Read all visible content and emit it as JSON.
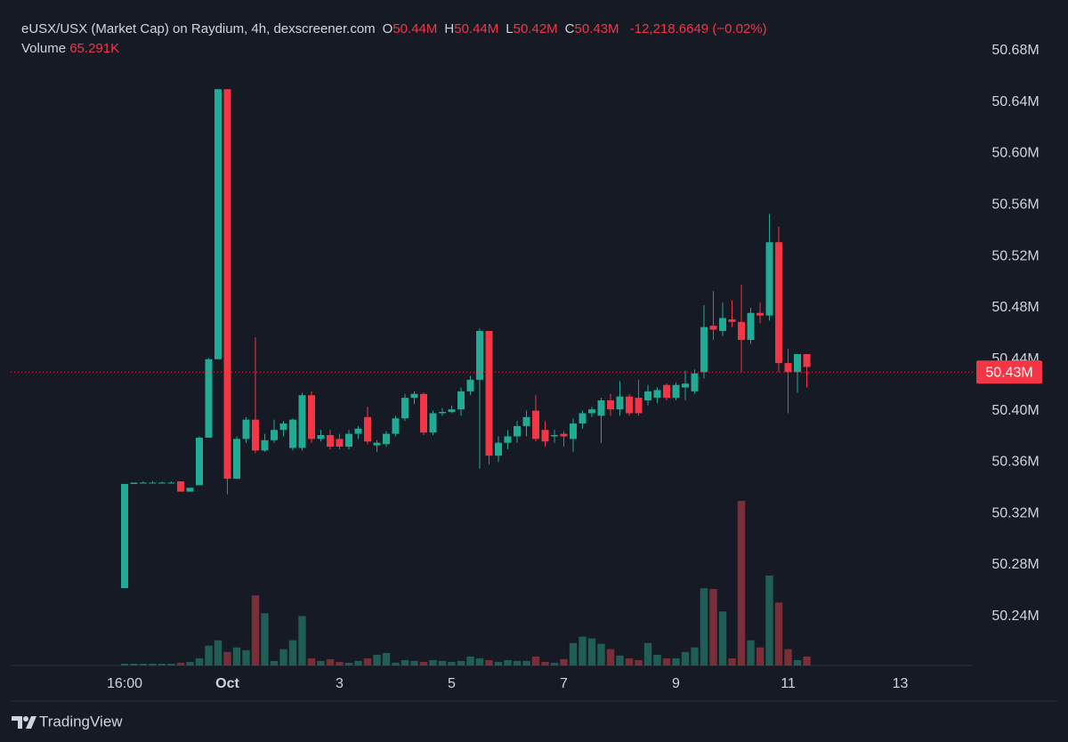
{
  "chart_data": {
    "type": "candlestick",
    "title": "eUSX/USX (Market Cap) on Raydium, 4h, dexscreener.com",
    "ohlc_legend": [
      {
        "key": "O",
        "value": "50.44M"
      },
      {
        "key": "H",
        "value": "50.44M"
      },
      {
        "key": "L",
        "value": "50.42M"
      },
      {
        "key": "C",
        "value": "50.43M"
      }
    ],
    "change": "-12,218.6649 (−0.02%)",
    "volume_legend": {
      "key": "Volume",
      "value": "65.291K"
    },
    "x": [
      0,
      1,
      2,
      3,
      4,
      5,
      6,
      7,
      8,
      9,
      10,
      11,
      12,
      13,
      14,
      15,
      16,
      17,
      18,
      19,
      20,
      21,
      22,
      23,
      24,
      25,
      26,
      27,
      28,
      29,
      30,
      31,
      32,
      33,
      34,
      35,
      36,
      37,
      38,
      39,
      40,
      41,
      42,
      43,
      44,
      45,
      46,
      47,
      48,
      49,
      50,
      51,
      52,
      53,
      54,
      55,
      56,
      57,
      58,
      59,
      60,
      61,
      62,
      63,
      64,
      65,
      66,
      67,
      68,
      69,
      70,
      71,
      72,
      73
    ],
    "open": [
      50262000,
      50343000,
      50344000,
      50344000,
      50344000,
      50344000,
      50345000,
      50337000,
      50342000,
      50379000,
      50440000,
      50650000,
      50347000,
      50378000,
      50393000,
      50369000,
      50377000,
      50385000,
      50371000,
      50371000,
      50412000,
      50378000,
      50381000,
      50378000,
      50372000,
      50382000,
      50395000,
      50373000,
      50374000,
      50382000,
      50394000,
      50410000,
      50413000,
      50383000,
      50398000,
      50399000,
      50401000,
      50415000,
      50424000,
      50462000,
      50365000,
      50375000,
      50380000,
      50388000,
      50400000,
      50385000,
      50380000,
      50382000,
      50378000,
      50390000,
      50398000,
      50396000,
      50408000,
      50401000,
      50411000,
      50410000,
      50408000,
      50410000,
      50420000,
      50410000,
      50418000,
      50415000,
      50430000,
      50466000,
      50462000,
      50471000,
      50469000,
      50455000,
      50476000,
      50474000,
      50531000,
      50437000,
      50430000,
      50444000
    ],
    "high": [
      50343000,
      50344000,
      50345000,
      50345000,
      50345000,
      50345000,
      50345000,
      50340000,
      50380000,
      50441000,
      50650000,
      50650000,
      50380000,
      50395000,
      50457000,
      50382000,
      50393000,
      50392000,
      50394000,
      50414000,
      50415000,
      50385000,
      50385000,
      50382000,
      50385000,
      50388000,
      50403000,
      50377000,
      50384000,
      50396000,
      50413000,
      50415000,
      50414000,
      50400000,
      50402000,
      50404000,
      50418000,
      50427000,
      50464000,
      50462000,
      50380000,
      50385000,
      50392000,
      50400000,
      50412000,
      50392000,
      50385000,
      50384000,
      50394000,
      50400000,
      50403000,
      50410000,
      50413000,
      50423000,
      50413000,
      50424000,
      50420000,
      50418000,
      50421000,
      50422000,
      50431000,
      50432000,
      50482000,
      50493000,
      50484000,
      50486000,
      50498000,
      50480000,
      50484000,
      50553000,
      50543000,
      50448000,
      50444000,
      50444000
    ],
    "low": [
      50262000,
      50343000,
      50344000,
      50344000,
      50344000,
      50344000,
      50337000,
      50337000,
      50342000,
      50379000,
      50440000,
      50335000,
      50347000,
      50375000,
      50367000,
      50368000,
      50375000,
      50380000,
      50369000,
      50369000,
      50375000,
      50376000,
      50370000,
      50370000,
      50370000,
      50378000,
      50374000,
      50368000,
      50372000,
      50380000,
      50392000,
      50405000,
      50381000,
      50381000,
      50396000,
      50398000,
      50396000,
      50412000,
      50355000,
      50358000,
      50360000,
      50370000,
      50375000,
      50380000,
      50376000,
      50372000,
      50375000,
      50372000,
      50368000,
      50386000,
      50395000,
      50375000,
      50396000,
      50396000,
      50396000,
      50396000,
      50404000,
      50406000,
      50408000,
      50408000,
      50408000,
      50413000,
      50425000,
      50455000,
      50458000,
      50465000,
      50430000,
      50452000,
      50468000,
      50470000,
      50430000,
      50398000,
      50414000,
      50418000
    ],
    "close": [
      50343000,
      50344000,
      50344000,
      50344000,
      50344000,
      50344000,
      50337000,
      50340000,
      50379000,
      50440000,
      50650000,
      50347000,
      50378000,
      50393000,
      50369000,
      50377000,
      50385000,
      50390000,
      50393000,
      50412000,
      50378000,
      50381000,
      50372000,
      50372000,
      50382000,
      50386000,
      50376000,
      50375000,
      50382000,
      50394000,
      50410000,
      50413000,
      50383000,
      50398000,
      50399000,
      50401000,
      50415000,
      50424000,
      50462000,
      50365000,
      50375000,
      50380000,
      50388000,
      50395000,
      50378000,
      50376000,
      50381000,
      50380000,
      50390000,
      50398000,
      50401000,
      50408000,
      50401000,
      50411000,
      50398000,
      50398000,
      50415000,
      50416000,
      50410000,
      50420000,
      50421000,
      50429000,
      50465000,
      50463000,
      50472000,
      50469000,
      50455000,
      50476000,
      50474000,
      50531000,
      50437000,
      50430000,
      50444000,
      50434000
    ],
    "volume": [
      13000,
      13000,
      13000,
      13000,
      13000,
      13000,
      20000,
      26000,
      52000,
      144000,
      183000,
      98000,
      131000,
      111000,
      509000,
      379000,
      33000,
      118000,
      183000,
      359000,
      52000,
      33000,
      46000,
      26000,
      20000,
      33000,
      52000,
      78000,
      91000,
      20000,
      39000,
      33000,
      26000,
      39000,
      33000,
      26000,
      33000,
      65000,
      52000,
      39000,
      26000,
      39000,
      33000,
      33000,
      65000,
      26000,
      20000,
      46000,
      163000,
      209000,
      196000,
      157000,
      118000,
      72000,
      52000,
      39000,
      163000,
      78000,
      52000,
      52000,
      98000,
      131000,
      561000,
      555000,
      392000,
      52000,
      1195000,
      183000,
      131000,
      653000,
      457000,
      118000,
      39000,
      65291
    ],
    "up_color": "#22ab94",
    "down_color": "#f23645",
    "volume_up_color": "#1f5d55",
    "volume_down_color": "#7a2f38",
    "xlim": [
      -12.19,
      90.76
    ],
    "xticks": [
      {
        "value": 0,
        "label": "16:00"
      },
      {
        "value": 11,
        "label": "Oct"
      },
      {
        "value": 23,
        "label": "3"
      },
      {
        "value": 35,
        "label": "5"
      },
      {
        "value": 47,
        "label": "7"
      },
      {
        "value": 59,
        "label": "9"
      },
      {
        "value": 71,
        "label": "11"
      },
      {
        "value": 83,
        "label": "13"
      }
    ],
    "ylim": [
      50201800,
      50709000
    ],
    "yticks": [
      {
        "value": 50680000,
        "label": "50.68M"
      },
      {
        "value": 50640000,
        "label": "50.64M"
      },
      {
        "value": 50600000,
        "label": "50.60M"
      },
      {
        "value": 50560000,
        "label": "50.56M"
      },
      {
        "value": 50520000,
        "label": "50.52M"
      },
      {
        "value": 50480000,
        "label": "50.48M"
      },
      {
        "value": 50440000,
        "label": "50.44M"
      },
      {
        "value": 50400000,
        "label": "50.40M"
      },
      {
        "value": 50360000,
        "label": "50.36M"
      },
      {
        "value": 50320000,
        "label": "50.32M"
      },
      {
        "value": 50280000,
        "label": "50.28M"
      },
      {
        "value": 50240000,
        "label": "50.24M"
      }
    ],
    "last_price": {
      "value": 50430000,
      "label": "50.43M"
    }
  },
  "footer": {
    "brand": "TradingView"
  }
}
